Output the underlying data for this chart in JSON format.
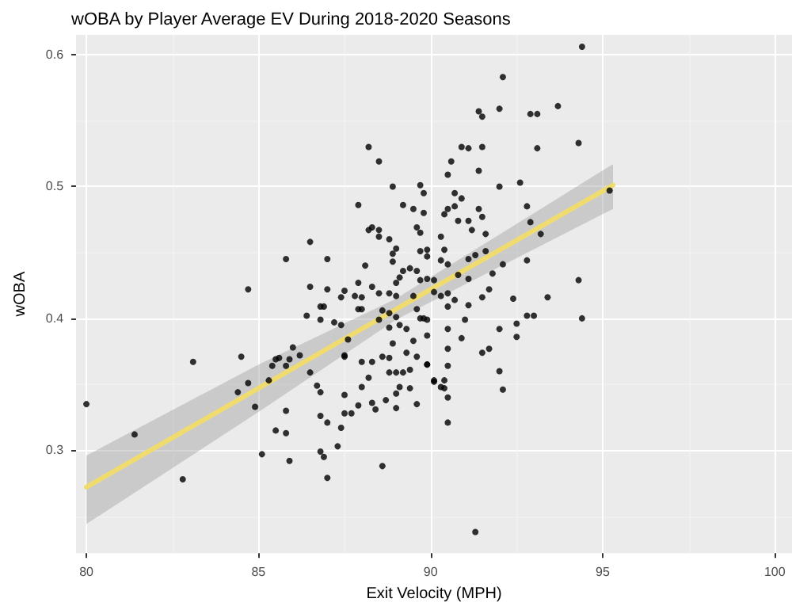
{
  "chart_data": {
    "type": "scatter",
    "title": "wOBA by Player Average EV During 2018-2020 Seasons",
    "xlabel": "Exit Velocity (MPH)",
    "ylabel": "wOBA",
    "xlim": [
      79.7,
      100.5
    ],
    "xticks": [
      80,
      85,
      90,
      95,
      100
    ],
    "ylim": [
      0.222,
      0.615
    ],
    "yticks": [
      0.3,
      0.4,
      0.5,
      0.6
    ],
    "grid": true,
    "marker": "circle",
    "series": [
      {
        "color": "#000000",
        "x": [
          80.0,
          81.4,
          82.8,
          83.1,
          84.5,
          84.4,
          84.7,
          84.9,
          85.1,
          85.3,
          85.4,
          85.5,
          85.6,
          85.5,
          85.8,
          85.8,
          85.9,
          86.0,
          85.8,
          85.9,
          86.2,
          86.4,
          86.5,
          86.7,
          86.8,
          86.8,
          86.8,
          86.9,
          87.0,
          87.0,
          87.3,
          87.4,
          87.5,
          87.5,
          87.5,
          87.6,
          87.7,
          87.9,
          88.0,
          88.0,
          88.2,
          88.3,
          88.4,
          88.6,
          88.7,
          88.8,
          88.9,
          89.0,
          89.0,
          89.1,
          89.2,
          89.4,
          89.4,
          89.6,
          89.9,
          90.1,
          87.2,
          87.4,
          88.5,
          88.6,
          88.8,
          89.0,
          89.1,
          89.3,
          89.5,
          89.7,
          89.9,
          89.6,
          89.3,
          88.6,
          88.8,
          87.5,
          88.8,
          88.3,
          89.0,
          88.2,
          88.5,
          88.9,
          87.9,
          89.2,
          89.5,
          88.2,
          88.3,
          88.5,
          88.5,
          88.8,
          89.6,
          89.7,
          86.5,
          89.0,
          88.9,
          89.7,
          85.8,
          87.0,
          88.9,
          88.1,
          89.4,
          89.2,
          89.6,
          84.7,
          86.5,
          87.0,
          87.5,
          87.9,
          88.3,
          89.1,
          89.0,
          89.7,
          87.4,
          87.8,
          88.0,
          88.5,
          88.8,
          89.0,
          89.5,
          86.8,
          86.9,
          87.9,
          88.0,
          86.8,
          89.6,
          89.7,
          89.8,
          89.8,
          89.9,
          89.9,
          90.5,
          89.9,
          90.1,
          90.1,
          90.3,
          90.5,
          90.7,
          90.5,
          89.9,
          90.3,
          90.5,
          90.8,
          90.6,
          90.5,
          90.7,
          90.9,
          90.7,
          90.4,
          90.8,
          91.1,
          91.2,
          91.4,
          91.5,
          91.6,
          90.3,
          90.4,
          91.3,
          91.6,
          91.1,
          91.4,
          92.0,
          92.6,
          92.8,
          92.9,
          93.2,
          92.8,
          92.1,
          91.8,
          91.1,
          91.7,
          91.5,
          92.4,
          93.4,
          94.3,
          94.4,
          91.1,
          91.0,
          94.4,
          92.1,
          91.4,
          91.5,
          92.0,
          92.9,
          93.1,
          93.7,
          94.3,
          90.9,
          91.1,
          91.5,
          93.1,
          95.2,
          92.8,
          93.0,
          92.5,
          92.5,
          92.0,
          92.0,
          92.1,
          91.5,
          91.7,
          90.9,
          90.5,
          90.5,
          90.5,
          90.4,
          90.3,
          90.4,
          90.5,
          90.5,
          90.1,
          89.9,
          89.8,
          91.3
        ],
        "values": [
          0.335,
          0.312,
          0.278,
          0.367,
          0.371,
          0.344,
          0.351,
          0.333,
          0.297,
          0.353,
          0.364,
          0.369,
          0.37,
          0.315,
          0.313,
          0.33,
          0.292,
          0.378,
          0.364,
          0.369,
          0.372,
          0.402,
          0.359,
          0.349,
          0.344,
          0.326,
          0.299,
          0.295,
          0.279,
          0.321,
          0.303,
          0.317,
          0.328,
          0.342,
          0.371,
          0.384,
          0.328,
          0.334,
          0.348,
          0.367,
          0.355,
          0.336,
          0.331,
          0.288,
          0.338,
          0.359,
          0.381,
          0.343,
          0.332,
          0.348,
          0.359,
          0.361,
          0.347,
          0.335,
          0.365,
          0.352,
          0.397,
          0.395,
          0.399,
          0.406,
          0.404,
          0.401,
          0.395,
          0.392,
          0.383,
          0.4,
          0.387,
          0.371,
          0.374,
          0.371,
          0.37,
          0.372,
          0.393,
          0.367,
          0.359,
          0.53,
          0.519,
          0.5,
          0.486,
          0.486,
          0.483,
          0.467,
          0.469,
          0.467,
          0.462,
          0.46,
          0.469,
          0.465,
          0.458,
          0.453,
          0.449,
          0.451,
          0.445,
          0.445,
          0.443,
          0.44,
          0.438,
          0.436,
          0.436,
          0.422,
          0.424,
          0.422,
          0.421,
          0.427,
          0.424,
          0.431,
          0.427,
          0.429,
          0.416,
          0.417,
          0.416,
          0.419,
          0.419,
          0.417,
          0.417,
          0.409,
          0.409,
          0.407,
          0.407,
          0.399,
          0.407,
          0.501,
          0.495,
          0.48,
          0.452,
          0.447,
          0.483,
          0.43,
          0.429,
          0.42,
          0.417,
          0.419,
          0.414,
          0.409,
          0.399,
          0.444,
          0.441,
          0.433,
          0.519,
          0.509,
          0.495,
          0.491,
          0.485,
          0.479,
          0.474,
          0.474,
          0.467,
          0.483,
          0.477,
          0.464,
          0.462,
          0.452,
          0.448,
          0.451,
          0.445,
          0.512,
          0.5,
          0.503,
          0.485,
          0.473,
          0.464,
          0.444,
          0.441,
          0.434,
          0.43,
          0.422,
          0.416,
          0.415,
          0.416,
          0.429,
          0.4,
          0.41,
          0.399,
          0.606,
          0.583,
          0.557,
          0.553,
          0.559,
          0.555,
          0.555,
          0.561,
          0.533,
          0.53,
          0.529,
          0.53,
          0.529,
          0.497,
          0.402,
          0.402,
          0.396,
          0.386,
          0.392,
          0.36,
          0.346,
          0.374,
          0.377,
          0.385,
          0.377,
          0.392,
          0.364,
          0.353,
          0.348,
          0.347,
          0.34,
          0.321,
          0.353,
          0.365,
          0.4,
          0.238
        ]
      },
      {
        "type": "line",
        "marker": "none",
        "color": "#f0dc6e",
        "x": [
          80,
          85,
          89,
          95.3
        ],
        "values": [
          0.272,
          0.347,
          0.407,
          0.501
        ],
        "lower": [
          0.244,
          0.329,
          0.399,
          0.483
        ],
        "upper": [
          0.296,
          0.365,
          0.415,
          0.517
        ]
      }
    ]
  }
}
